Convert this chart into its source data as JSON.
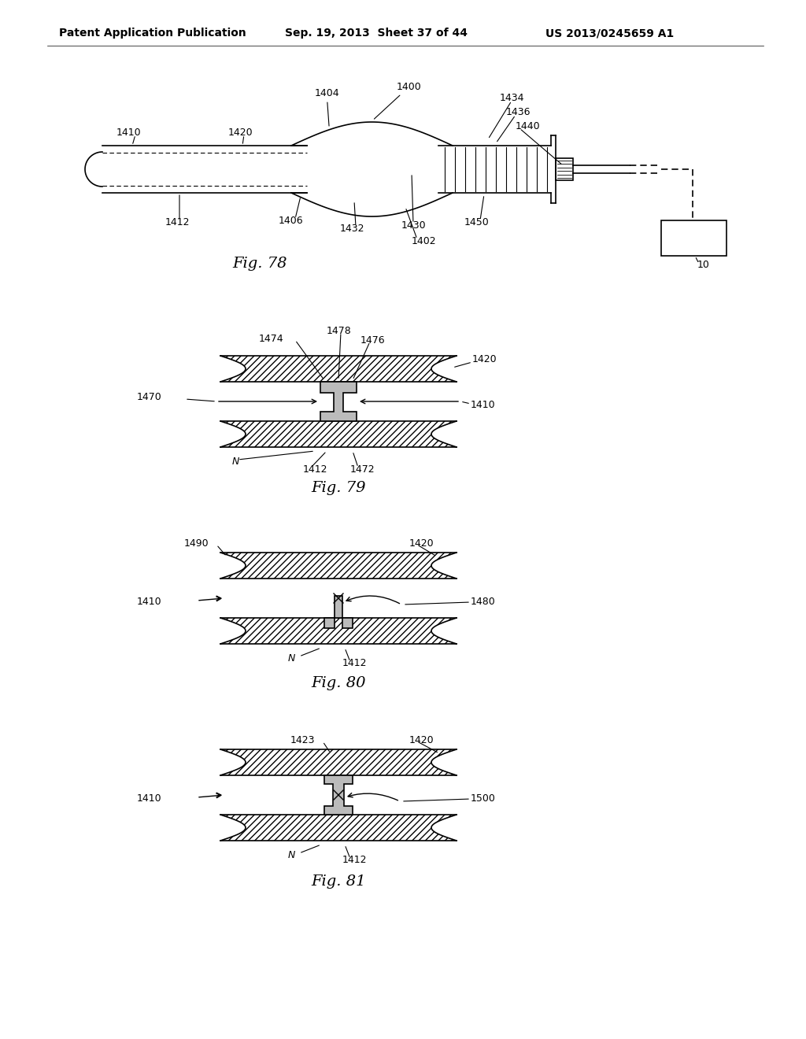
{
  "bg_color": "#ffffff",
  "header_left": "Patent Application Publication",
  "header_mid": "Sep. 19, 2013  Sheet 37 of 44",
  "header_right": "US 2013/0245659 A1",
  "fig78_caption": "Fig. 78",
  "fig79_caption": "Fig. 79",
  "fig80_caption": "Fig. 80",
  "fig81_caption": "Fig. 81",
  "line_color": "#000000",
  "gray_fill": "#bbbbbb"
}
